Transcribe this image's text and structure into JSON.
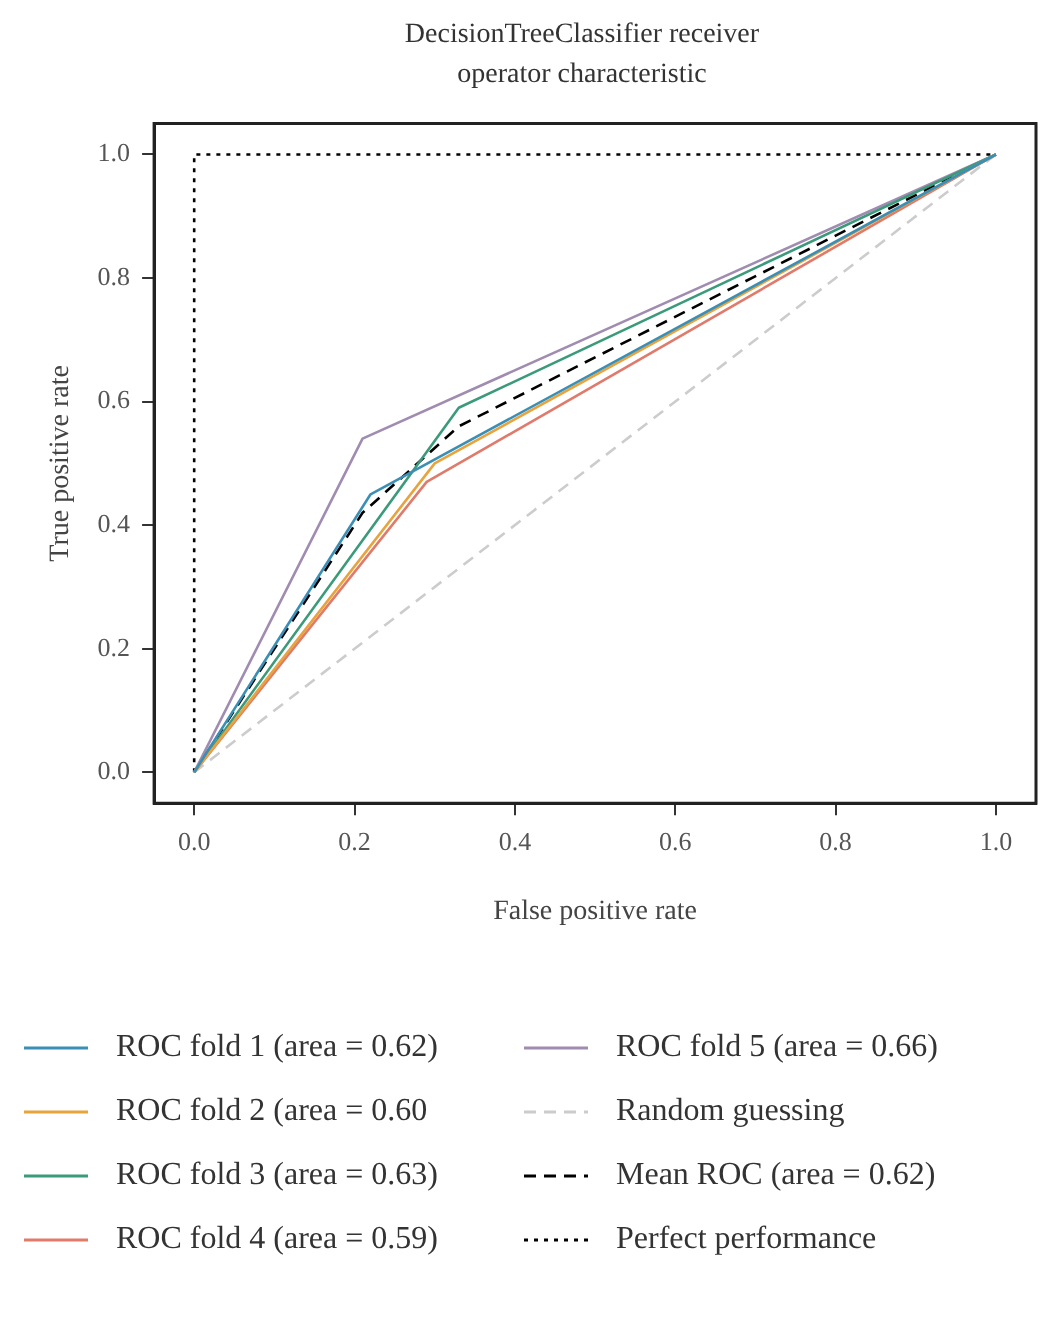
{
  "chart_data": {
    "type": "line",
    "title": "DecisionTreeClassifier receiver operator characteristic",
    "xlabel": "False positive rate",
    "ylabel": "True positive rate",
    "xlim": [
      -0.05,
      1.05
    ],
    "ylim": [
      -0.05,
      1.05
    ],
    "xticks": [
      {
        "value": 0,
        "label": "0.0"
      },
      0.2,
      0.4,
      0.6,
      0.8,
      {
        "value": 1,
        "label": "1.0"
      }
    ],
    "yticks": [
      {
        "value": 0,
        "label": "0.0"
      },
      0.2,
      0.4,
      0.6,
      0.8,
      {
        "value": 1,
        "label": "1.0"
      }
    ],
    "grid": false,
    "legend": "bottom",
    "marker": "none",
    "line_style": "solid",
    "series": [
      {
        "name": "ROC fold 1 (area = 0.62)",
        "color": "#3b8fb5",
        "x": [
          0,
          0.22,
          1
        ],
        "values": [
          0,
          0.45,
          1
        ]
      },
      {
        "name": "ROC fold 2 (area = 0.60",
        "color": "#e8a33d",
        "x": [
          0,
          0.3,
          1
        ],
        "values": [
          0,
          0.5,
          1
        ]
      },
      {
        "name": "ROC fold 3 (area = 0.63)",
        "color": "#3a9a7a",
        "x": [
          0,
          0.33,
          1
        ],
        "values": [
          0,
          0.59,
          1
        ]
      },
      {
        "name": "ROC fold 4 (area = 0.59)",
        "color": "#e07a6a",
        "x": [
          0,
          0.29,
          1
        ],
        "values": [
          0,
          0.47,
          1
        ]
      },
      {
        "name": "ROC fold 5 (area = 0.66)",
        "color": "#a08cb0",
        "x": [
          0,
          0.21,
          1
        ],
        "values": [
          0,
          0.54,
          1
        ]
      },
      {
        "name": "Random guessing",
        "color": "#cccccc",
        "line_style": "dashed",
        "x": [
          0,
          1
        ],
        "values": [
          0,
          1
        ]
      },
      {
        "name": "Mean ROC (area = 0.62)",
        "color": "#000000",
        "line_style": "dashed",
        "x": [
          0,
          0.21,
          0.33,
          1
        ],
        "values": [
          0,
          0.42,
          0.56,
          1
        ]
      },
      {
        "name": "Perfect performance",
        "color": "#000000",
        "line_style": "dotted",
        "x": [
          0,
          0,
          1
        ],
        "values": [
          0,
          1,
          1
        ]
      }
    ]
  }
}
